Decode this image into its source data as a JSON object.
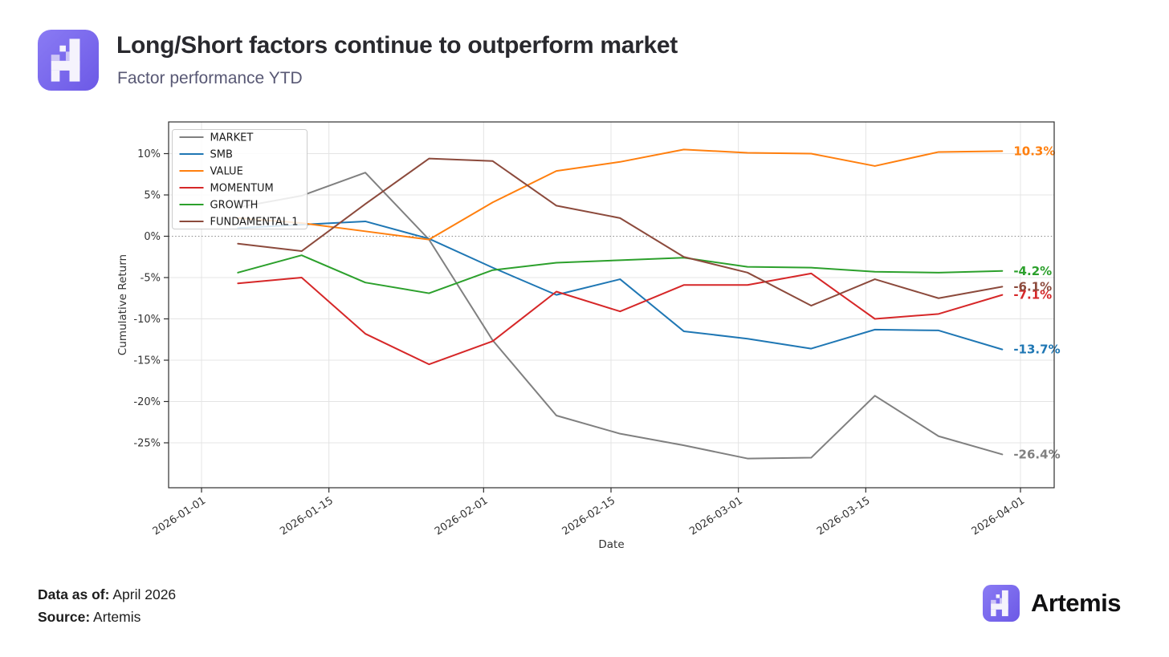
{
  "header": {
    "title": "Long/Short factors continue to outperform market",
    "subtitle": "Factor performance YTD"
  },
  "footer": {
    "data_as_of_label": "Data as of:",
    "data_as_of_value": " April 2026",
    "source_label": "Source:",
    "source_value": " Artemis",
    "brand_name": "Artemis"
  },
  "chart_data": {
    "type": "line",
    "xlabel": "Date",
    "ylabel": "Cumulative Return",
    "grid": true,
    "legend_position": "upper left",
    "ylim": [
      -30.4,
      13.8
    ],
    "xlim_days": [
      -3.6,
      93.7
    ],
    "x_tick_days": [
      0,
      14,
      31,
      45,
      59,
      73,
      90
    ],
    "x_tick_labels": [
      "2026-01-01",
      "2026-01-15",
      "2026-02-01",
      "2026-02-15",
      "2026-03-01",
      "2026-03-15",
      "2026-04-01"
    ],
    "y_tick_values": [
      10,
      5,
      0,
      -5,
      -10,
      -15,
      -20,
      -25
    ],
    "y_tick_labels": [
      "10%",
      "5%",
      "0%",
      "-5%",
      "-10%",
      "-15%",
      "-20%",
      "-25%"
    ],
    "dates": [
      "2026-01-05",
      "2026-01-12",
      "2026-01-19",
      "2026-01-26",
      "2026-02-02",
      "2026-02-09",
      "2026-02-16",
      "2026-02-23",
      "2026-03-02",
      "2026-03-09",
      "2026-03-16",
      "2026-03-23",
      "2026-03-30"
    ],
    "x_days": [
      4,
      11,
      18,
      25,
      32,
      39,
      46,
      53,
      60,
      67,
      74,
      81,
      88
    ],
    "zero_line": 0,
    "series": [
      {
        "name": "MARKET",
        "color": "#808080",
        "end_label": "-26.4%",
        "values": [
          3.5,
          4.9,
          7.7,
          -0.4,
          -12.6,
          -21.7,
          -23.9,
          -25.3,
          -26.9,
          -26.8,
          -19.3,
          -24.2,
          -26.4
        ]
      },
      {
        "name": "SMB",
        "color": "#1f77b4",
        "end_label": "-13.7%",
        "values": [
          1.0,
          1.4,
          1.8,
          -0.3,
          -3.8,
          -7.1,
          -5.2,
          -11.5,
          -12.4,
          -13.6,
          -11.3,
          -11.4,
          -13.7
        ]
      },
      {
        "name": "VALUE",
        "color": "#ff7f0e",
        "end_label": "10.3%",
        "values": [
          2.2,
          1.6,
          0.6,
          -0.4,
          4.1,
          7.9,
          9.0,
          10.5,
          10.1,
          10.0,
          8.5,
          10.2,
          10.3
        ]
      },
      {
        "name": "MOMENTUM",
        "color": "#d62728",
        "end_label": "-7.1%",
        "values": [
          -5.7,
          -5.0,
          -11.8,
          -15.5,
          -12.7,
          -6.7,
          -9.1,
          -5.9,
          -5.9,
          -4.5,
          -10.0,
          -9.4,
          -7.1
        ]
      },
      {
        "name": "GROWTH",
        "color": "#2ca02c",
        "end_label": "-4.2%",
        "values": [
          -4.4,
          -2.3,
          -5.6,
          -6.9,
          -4.1,
          -3.2,
          -2.9,
          -2.6,
          -3.7,
          -3.8,
          -4.3,
          -4.4,
          -4.2
        ]
      },
      {
        "name": "FUNDAMENTAL 1",
        "color": "#8c4a3c",
        "end_label": "-6.1%",
        "values": [
          -0.9,
          -1.8,
          3.9,
          9.4,
          9.1,
          3.7,
          2.2,
          -2.5,
          -4.4,
          -8.4,
          -5.2,
          -7.5,
          -6.1
        ]
      }
    ]
  },
  "logo": {
    "alt": "artemis-logo"
  }
}
